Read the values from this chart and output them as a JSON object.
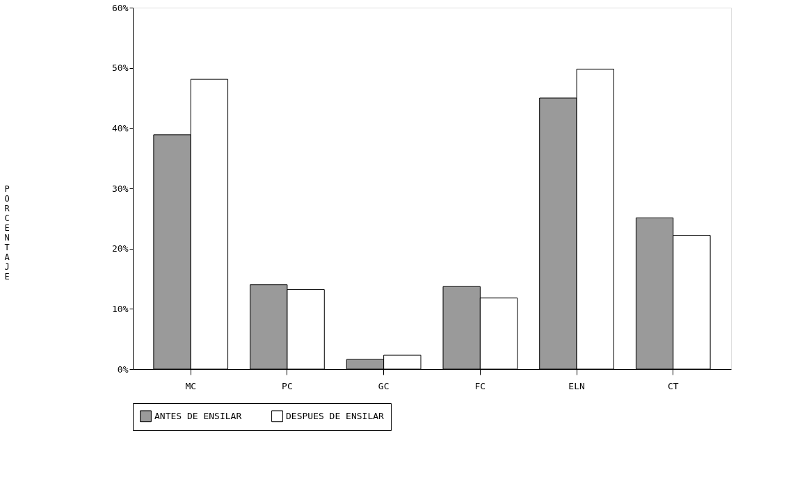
{
  "chart_data": {
    "type": "bar",
    "ylabel": "PORCENTAJE",
    "categories": [
      "MC",
      "PC",
      "GC",
      "FC",
      "ELN",
      "CT"
    ],
    "series": [
      {
        "name": "ANTES DE ENSILAR",
        "color": "#9a9a9a",
        "values": [
          38.9,
          14.0,
          1.6,
          13.7,
          45.0,
          25.1
        ]
      },
      {
        "name": "DESPUES DE ENSILAR",
        "color": "#ffffff",
        "values": [
          48.1,
          13.2,
          2.3,
          11.8,
          49.8,
          22.2
        ]
      }
    ],
    "ylim": [
      0,
      60
    ],
    "yticks": [
      {
        "value": 0,
        "label": "0%"
      },
      {
        "value": 10,
        "label": "10%"
      },
      {
        "value": 20,
        "label": "20%"
      },
      {
        "value": 30,
        "label": "30%"
      },
      {
        "value": 40,
        "label": "40%"
      },
      {
        "value": 50,
        "label": "50%"
      },
      {
        "value": 60,
        "label": "60%"
      }
    ],
    "grid": false,
    "legend": "bottom"
  }
}
